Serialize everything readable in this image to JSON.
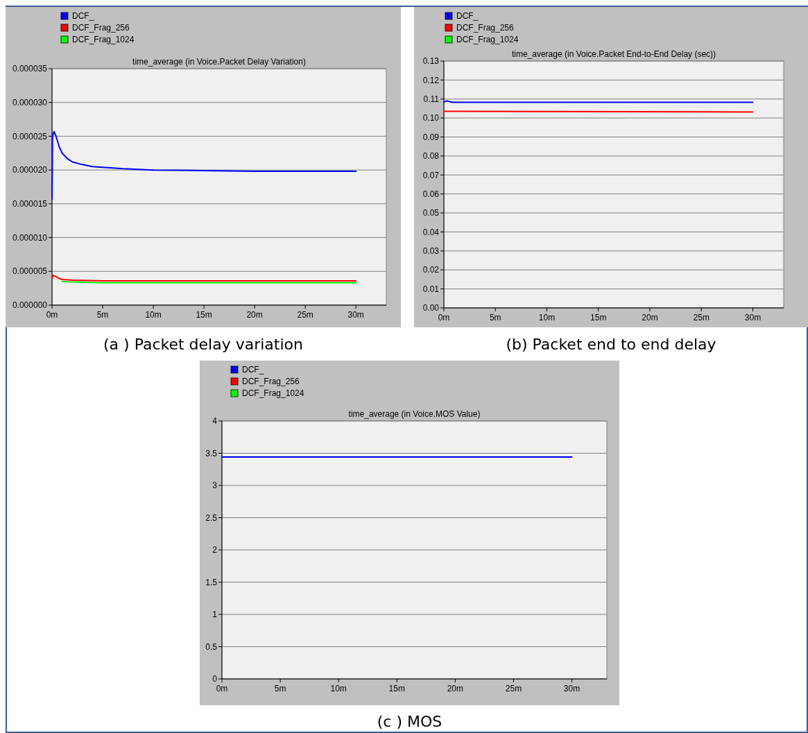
{
  "chart_data": [
    {
      "type": "line",
      "title": "time_average (in Voice.Packet Delay Variation)",
      "xlim": [
        0,
        33
      ],
      "xticks": [
        {
          "value": 0,
          "label": "0m"
        },
        {
          "value": 5,
          "label": "5m"
        },
        {
          "value": 10,
          "label": "10m"
        },
        {
          "value": 15,
          "label": "15m"
        },
        {
          "value": 20,
          "label": "20m"
        },
        {
          "value": 25,
          "label": "25m"
        },
        {
          "value": 30,
          "label": "30m"
        }
      ],
      "ylim": [
        0,
        3.5e-05
      ],
      "yticks": [
        {
          "value": 0,
          "label": "0.000000"
        },
        {
          "value": 5e-06,
          "label": "0.000005"
        },
        {
          "value": 1e-05,
          "label": "0.000010"
        },
        {
          "value": 1.5e-05,
          "label": "0.000015"
        },
        {
          "value": 2e-05,
          "label": "0.000020"
        },
        {
          "value": 2.5e-05,
          "label": "0.000025"
        },
        {
          "value": 3e-05,
          "label": "0.000030"
        },
        {
          "value": 3.5e-05,
          "label": "0.000035"
        }
      ],
      "grid": "y",
      "legend": "top left",
      "annotations": [
        "(a ) Packet delay variation"
      ],
      "series": [
        {
          "name": "DCF_",
          "color": "#0000ff",
          "x": [
            0,
            0.05,
            0.2,
            0.4,
            0.7,
            1,
            1.5,
            2,
            3,
            4,
            5,
            7,
            10,
            15,
            20,
            30
          ],
          "values": [
            1.57e-05,
            2.5e-05,
            2.57e-05,
            2.5e-05,
            2.35e-05,
            2.25e-05,
            2.17e-05,
            2.12e-05,
            2.08e-05,
            2.05e-05,
            2.04e-05,
            2.02e-05,
            2e-05,
            1.99e-05,
            1.98e-05,
            1.98e-05
          ]
        },
        {
          "name": "DCF_Frag_256",
          "color": "#ff0000",
          "x": [
            0,
            0.1,
            0.3,
            0.6,
            1,
            2,
            5,
            10,
            20,
            30
          ],
          "values": [
            4e-06,
            4.4e-06,
            4.3e-06,
            4e-06,
            3.8e-06,
            3.7e-06,
            3.6e-06,
            3.6e-06,
            3.6e-06,
            3.6e-06
          ]
        },
        {
          "name": "DCF_Frag_1024",
          "color": "#00ff00",
          "x": [
            1,
            2,
            5,
            10,
            20,
            30
          ],
          "values": [
            3.5e-06,
            3.4e-06,
            3.3e-06,
            3.3e-06,
            3.3e-06,
            3.3e-06
          ]
        }
      ]
    },
    {
      "type": "line",
      "title": "time_average (in Voice.Packet End-to-End Delay (sec))",
      "xlim": [
        0,
        33
      ],
      "xticks": [
        {
          "value": 0,
          "label": "0m"
        },
        {
          "value": 5,
          "label": "5m"
        },
        {
          "value": 10,
          "label": "10m"
        },
        {
          "value": 15,
          "label": "15m"
        },
        {
          "value": 20,
          "label": "20m"
        },
        {
          "value": 25,
          "label": "25m"
        },
        {
          "value": 30,
          "label": "30m"
        }
      ],
      "ylim": [
        0,
        0.13
      ],
      "yticks": [
        {
          "value": 0,
          "label": "0.00"
        },
        {
          "value": 0.01,
          "label": "0.01"
        },
        {
          "value": 0.02,
          "label": "0.02"
        },
        {
          "value": 0.03,
          "label": "0.03"
        },
        {
          "value": 0.04,
          "label": "0.04"
        },
        {
          "value": 0.05,
          "label": "0.05"
        },
        {
          "value": 0.06,
          "label": "0.06"
        },
        {
          "value": 0.07,
          "label": "0.07"
        },
        {
          "value": 0.08,
          "label": "0.08"
        },
        {
          "value": 0.09,
          "label": "0.09"
        },
        {
          "value": 0.1,
          "label": "0.10"
        },
        {
          "value": 0.11,
          "label": "0.11"
        },
        {
          "value": 0.12,
          "label": "0.12"
        },
        {
          "value": 0.13,
          "label": "0.13"
        }
      ],
      "grid": "y",
      "legend": "top left",
      "annotations": [
        "(b) Packet end to end delay"
      ],
      "series": [
        {
          "name": "DCF_",
          "color": "#0000ff",
          "x": [
            0,
            0.3,
            0.8,
            30
          ],
          "values": [
            0.1085,
            0.109,
            0.1083,
            0.1083
          ]
        },
        {
          "name": "DCF_Frag_256",
          "color": "#ff0000",
          "x": [
            0,
            30
          ],
          "values": [
            0.1035,
            0.1032
          ]
        },
        {
          "name": "DCF_Frag_1024",
          "color": "#00ff00"
        }
      ]
    },
    {
      "type": "line",
      "title": "time_average (in Voice.MOS Value)",
      "xlim": [
        0,
        33
      ],
      "xticks": [
        {
          "value": 0,
          "label": "0m"
        },
        {
          "value": 5,
          "label": "5m"
        },
        {
          "value": 10,
          "label": "10m"
        },
        {
          "value": 15,
          "label": "15m"
        },
        {
          "value": 20,
          "label": "20m"
        },
        {
          "value": 25,
          "label": "25m"
        },
        {
          "value": 30,
          "label": "30m"
        }
      ],
      "ylim": [
        0,
        4
      ],
      "yticks": [
        0,
        0.5,
        1,
        1.5,
        2,
        2.5,
        3,
        3.5,
        4
      ],
      "grid": "y",
      "legend": "top left",
      "annotations": [
        "(c ) MOS"
      ],
      "series": [
        {
          "name": "DCF_",
          "color": "#0000ff",
          "x": [
            0,
            30
          ],
          "values": [
            3.44,
            3.44
          ]
        },
        {
          "name": "DCF_Frag_256",
          "color": "#ff0000"
        },
        {
          "name": "DCF_Frag_1024",
          "color": "#00ff00"
        }
      ]
    }
  ]
}
